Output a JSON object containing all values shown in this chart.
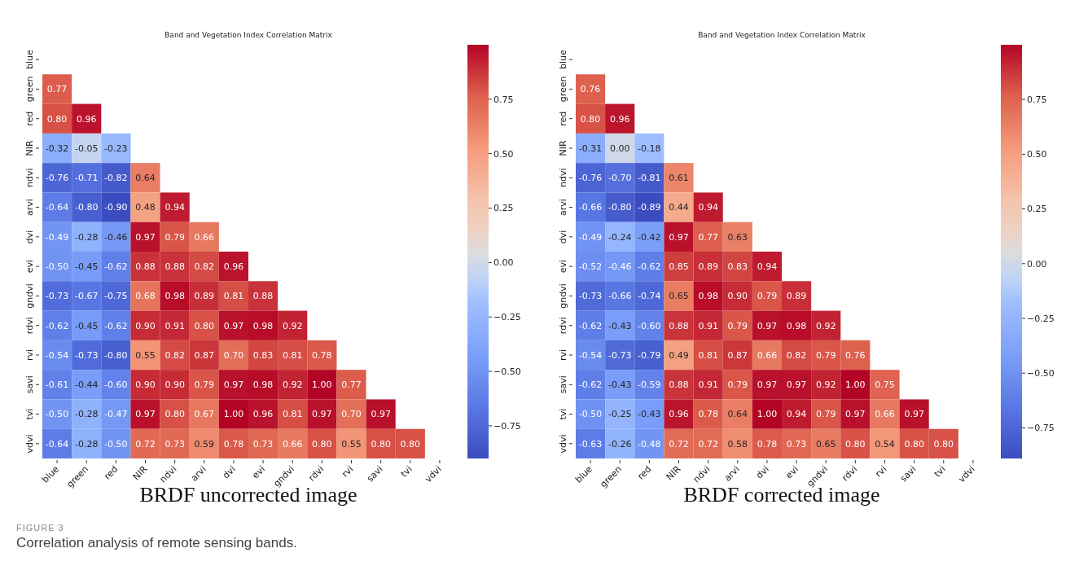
{
  "chart_data": [
    {
      "type": "heatmap",
      "title": "Band and Vegetation Index Correlation Matrix",
      "xlabel": "BRDF uncorrected image",
      "categories": [
        "blue",
        "green",
        "red",
        "NIR",
        "ndvi",
        "arvi",
        "dvi",
        "evi",
        "gndvi",
        "rdvi",
        "rvi",
        "savi",
        "tvi",
        "vdvi"
      ],
      "y_categories": [
        "blue",
        "green",
        "red",
        "NIR",
        "ndvi",
        "arvi",
        "dvi",
        "evi",
        "gndvi",
        "rdvi",
        "rvi",
        "savi",
        "tvi",
        "vdvi"
      ],
      "cells": [
        [
          null,
          null,
          null,
          null,
          null,
          null,
          null,
          null,
          null,
          null,
          null,
          null,
          null,
          null
        ],
        [
          0.77,
          null,
          null,
          null,
          null,
          null,
          null,
          null,
          null,
          null,
          null,
          null,
          null,
          null
        ],
        [
          0.8,
          0.96,
          null,
          null,
          null,
          null,
          null,
          null,
          null,
          null,
          null,
          null,
          null,
          null
        ],
        [
          -0.32,
          -0.05,
          -0.23,
          null,
          null,
          null,
          null,
          null,
          null,
          null,
          null,
          null,
          null,
          null
        ],
        [
          -0.76,
          -0.71,
          -0.82,
          0.64,
          null,
          null,
          null,
          null,
          null,
          null,
          null,
          null,
          null,
          null
        ],
        [
          -0.64,
          -0.8,
          -0.9,
          0.48,
          0.94,
          null,
          null,
          null,
          null,
          null,
          null,
          null,
          null,
          null
        ],
        [
          -0.49,
          -0.28,
          -0.46,
          0.97,
          0.79,
          0.66,
          null,
          null,
          null,
          null,
          null,
          null,
          null,
          null
        ],
        [
          -0.5,
          -0.45,
          -0.62,
          0.88,
          0.88,
          0.82,
          0.96,
          null,
          null,
          null,
          null,
          null,
          null,
          null
        ],
        [
          -0.73,
          -0.67,
          -0.75,
          0.68,
          0.98,
          0.89,
          0.81,
          0.88,
          null,
          null,
          null,
          null,
          null,
          null
        ],
        [
          -0.62,
          -0.45,
          -0.62,
          0.9,
          0.91,
          0.8,
          0.97,
          0.98,
          0.92,
          null,
          null,
          null,
          null,
          null
        ],
        [
          -0.54,
          -0.73,
          -0.8,
          0.55,
          0.82,
          0.87,
          0.7,
          0.83,
          0.81,
          0.78,
          null,
          null,
          null,
          null
        ],
        [
          -0.61,
          -0.44,
          -0.6,
          0.9,
          0.9,
          0.79,
          0.97,
          0.98,
          0.92,
          1.0,
          0.77,
          null,
          null,
          null
        ],
        [
          -0.5,
          -0.28,
          -0.47,
          0.97,
          0.8,
          0.67,
          1.0,
          0.96,
          0.81,
          0.97,
          0.7,
          0.97,
          null,
          null
        ],
        [
          -0.64,
          -0.28,
          -0.5,
          0.72,
          0.73,
          0.59,
          0.78,
          0.73,
          0.66,
          0.8,
          0.55,
          0.8,
          0.8,
          null
        ]
      ],
      "cell_labels": [
        [
          null,
          null,
          null,
          null,
          null,
          null,
          null,
          null,
          null,
          null,
          null,
          null,
          null,
          null
        ],
        [
          "0.77",
          null,
          null,
          null,
          null,
          null,
          null,
          null,
          null,
          null,
          null,
          null,
          null,
          null
        ],
        [
          "0.80",
          "0.96",
          null,
          null,
          null,
          null,
          null,
          null,
          null,
          null,
          null,
          null,
          null,
          null
        ],
        [
          "-0.32",
          "-0.05",
          "-0.23",
          null,
          null,
          null,
          null,
          null,
          null,
          null,
          null,
          null,
          null,
          null
        ],
        [
          "-0.76",
          "-0.71",
          "-0.82",
          "0.64",
          null,
          null,
          null,
          null,
          null,
          null,
          null,
          null,
          null,
          null
        ],
        [
          "-0.64",
          "-0.80",
          "-0.90",
          "0.48",
          "0.94",
          null,
          null,
          null,
          null,
          null,
          null,
          null,
          null,
          null
        ],
        [
          "-0.49",
          "-0.28",
          "-0.46",
          "0.97",
          "0.79",
          "0.66",
          null,
          null,
          null,
          null,
          null,
          null,
          null,
          null
        ],
        [
          "-0.50",
          "-0.45",
          "-0.62",
          "0.88",
          "0.88",
          "0.82",
          "0.96",
          null,
          null,
          null,
          null,
          null,
          null,
          null
        ],
        [
          "-0.73",
          "-0.67",
          "-0.75",
          "0.68",
          "0.98",
          "0.89",
          "0.81",
          "0.88",
          null,
          null,
          null,
          null,
          null,
          null
        ],
        [
          "-0.62",
          "-0.45",
          "-0.62",
          "0.90",
          "0.91",
          "0.80",
          "0.97",
          "0.98",
          "0.92",
          null,
          null,
          null,
          null,
          null
        ],
        [
          "-0.54",
          "-0.73",
          "-0.80",
          "0.55",
          "0.82",
          "0.87",
          "0.70",
          "0.83",
          "0.81",
          "0.78",
          null,
          null,
          null,
          null
        ],
        [
          "-0.61",
          "-0.44",
          "-0.60",
          "0.90",
          "0.90",
          "0.79",
          "0.97",
          "0.98",
          "0.92",
          "1.00",
          "0.77",
          null,
          null,
          null
        ],
        [
          "-0.50",
          "-0.28",
          "-0.47",
          "0.97",
          "0.80",
          "0.67",
          "1.00",
          "0.96",
          "0.81",
          "0.97",
          "0.70",
          "0.97",
          null,
          null
        ],
        [
          "-0.64",
          "-0.28",
          "-0.50",
          "0.72",
          "0.73",
          "0.59",
          "0.78",
          "0.73",
          "0.66",
          "0.80",
          "0.55",
          "0.80",
          "0.80",
          null
        ]
      ],
      "clim": [
        -0.9,
        1.0
      ],
      "cticks": [
        {
          "value": -0.75,
          "label": "−0.75"
        },
        {
          "value": -0.5,
          "label": "−0.50"
        },
        {
          "value": -0.25,
          "label": "−0.25"
        },
        {
          "value": 0,
          "label": "0.00"
        },
        {
          "value": 0.25,
          "label": "0.25"
        },
        {
          "value": 0.5,
          "label": "0.50"
        },
        {
          "value": 0.75,
          "label": "0.75"
        }
      ],
      "annotations": [
        "FIGURE 3",
        "Correlation analysis of remote sensing bands."
      ]
    },
    {
      "type": "heatmap",
      "title": "Band and Vegetation Index Correlation Matrix",
      "xlabel": "BRDF corrected image",
      "categories": [
        "blue",
        "green",
        "red",
        "NIR",
        "ndvi",
        "arvi",
        "dvi",
        "evi",
        "gndvi",
        "rdvi",
        "rvi",
        "savi",
        "tvi",
        "vdvi"
      ],
      "y_categories": [
        "blue",
        "green",
        "red",
        "NIR",
        "ndvi",
        "arvi",
        "dvi",
        "evi",
        "gndvi",
        "rdvi",
        "rvi",
        "savi",
        "tvi",
        "vdvi"
      ],
      "cells": [
        [
          null,
          null,
          null,
          null,
          null,
          null,
          null,
          null,
          null,
          null,
          null,
          null,
          null,
          null
        ],
        [
          0.76,
          null,
          null,
          null,
          null,
          null,
          null,
          null,
          null,
          null,
          null,
          null,
          null,
          null
        ],
        [
          0.8,
          0.96,
          null,
          null,
          null,
          null,
          null,
          null,
          null,
          null,
          null,
          null,
          null,
          null
        ],
        [
          -0.31,
          0.0,
          -0.18,
          null,
          null,
          null,
          null,
          null,
          null,
          null,
          null,
          null,
          null,
          null
        ],
        [
          -0.76,
          -0.7,
          -0.81,
          0.61,
          null,
          null,
          null,
          null,
          null,
          null,
          null,
          null,
          null,
          null
        ],
        [
          -0.66,
          -0.8,
          -0.89,
          0.44,
          0.94,
          null,
          null,
          null,
          null,
          null,
          null,
          null,
          null,
          null
        ],
        [
          -0.49,
          -0.24,
          -0.42,
          0.97,
          0.77,
          0.63,
          null,
          null,
          null,
          null,
          null,
          null,
          null,
          null
        ],
        [
          -0.52,
          -0.46,
          -0.62,
          0.85,
          0.89,
          0.83,
          0.94,
          null,
          null,
          null,
          null,
          null,
          null,
          null
        ],
        [
          -0.73,
          -0.66,
          -0.74,
          0.65,
          0.98,
          0.9,
          0.79,
          0.89,
          null,
          null,
          null,
          null,
          null,
          null
        ],
        [
          -0.62,
          -0.43,
          -0.6,
          0.88,
          0.91,
          0.79,
          0.97,
          0.98,
          0.92,
          null,
          null,
          null,
          null,
          null
        ],
        [
          -0.54,
          -0.73,
          -0.79,
          0.49,
          0.81,
          0.87,
          0.66,
          0.82,
          0.79,
          0.76,
          null,
          null,
          null,
          null
        ],
        [
          -0.62,
          -0.43,
          -0.59,
          0.88,
          0.91,
          0.79,
          0.97,
          0.97,
          0.92,
          1.0,
          0.75,
          null,
          null,
          null
        ],
        [
          -0.5,
          -0.25,
          -0.43,
          0.96,
          0.78,
          0.64,
          1.0,
          0.94,
          0.79,
          0.97,
          0.66,
          0.97,
          null,
          null
        ],
        [
          -0.63,
          -0.26,
          -0.48,
          0.72,
          0.72,
          0.58,
          0.78,
          0.73,
          0.65,
          0.8,
          0.54,
          0.8,
          0.8,
          null
        ]
      ],
      "cell_labels": [
        [
          null,
          null,
          null,
          null,
          null,
          null,
          null,
          null,
          null,
          null,
          null,
          null,
          null,
          null
        ],
        [
          "0.76",
          null,
          null,
          null,
          null,
          null,
          null,
          null,
          null,
          null,
          null,
          null,
          null,
          null
        ],
        [
          "0.80",
          "0.96",
          null,
          null,
          null,
          null,
          null,
          null,
          null,
          null,
          null,
          null,
          null,
          null
        ],
        [
          "-0.31",
          "0.00",
          "-0.18",
          null,
          null,
          null,
          null,
          null,
          null,
          null,
          null,
          null,
          null,
          null
        ],
        [
          "-0.76",
          "-0.70",
          "-0.81",
          "0.61",
          null,
          null,
          null,
          null,
          null,
          null,
          null,
          null,
          null,
          null
        ],
        [
          "-0.66",
          "-0.80",
          "-0.89",
          "0.44",
          "0.94",
          null,
          null,
          null,
          null,
          null,
          null,
          null,
          null,
          null
        ],
        [
          "-0.49",
          "-0.24",
          "-0.42",
          "0.97",
          "0.77",
          "0.63",
          null,
          null,
          null,
          null,
          null,
          null,
          null,
          null
        ],
        [
          "-0.52",
          "-0.46",
          "-0.62",
          "0.85",
          "0.89",
          "0.83",
          "0.94",
          null,
          null,
          null,
          null,
          null,
          null,
          null
        ],
        [
          "-0.73",
          "-0.66",
          "-0.74",
          "0.65",
          "0.98",
          "0.90",
          "0.79",
          "0.89",
          null,
          null,
          null,
          null,
          null,
          null
        ],
        [
          "-0.62",
          "-0.43",
          "-0.60",
          "0.88",
          "0.91",
          "0.79",
          "0.97",
          "0.98",
          "0.92",
          null,
          null,
          null,
          null,
          null
        ],
        [
          "-0.54",
          "-0.73",
          "-0.79",
          "0.49",
          "0.81",
          "0.87",
          "0.66",
          "0.82",
          "0.79",
          "0.76",
          null,
          null,
          null,
          null
        ],
        [
          "-0.62",
          "-0.43",
          "-0.59",
          "0.88",
          "0.91",
          "0.79",
          "0.97",
          "0.97",
          "0.92",
          "1.00",
          "0.75",
          null,
          null,
          null
        ],
        [
          "-0.50",
          "-0.25",
          "-0.43",
          "0.96",
          "0.78",
          "0.64",
          "1.00",
          "0.94",
          "0.79",
          "0.97",
          "0.66",
          "0.97",
          null,
          null
        ],
        [
          "-0.63",
          "-0.26",
          "-0.48",
          "0.72",
          "0.72",
          "0.58",
          "0.78",
          "0.73",
          "0.65",
          "0.80",
          "0.54",
          "0.80",
          "0.80",
          null
        ]
      ],
      "clim": [
        -0.89,
        1.0
      ],
      "cticks": [
        {
          "value": -0.75,
          "label": "−0.75"
        },
        {
          "value": -0.5,
          "label": "−0.50"
        },
        {
          "value": -0.25,
          "label": "−0.25"
        },
        {
          "value": 0,
          "label": "0.00"
        },
        {
          "value": 0.25,
          "label": "0.25"
        },
        {
          "value": 0.5,
          "label": "0.50"
        },
        {
          "value": 0.75,
          "label": "0.75"
        }
      ]
    }
  ]
}
